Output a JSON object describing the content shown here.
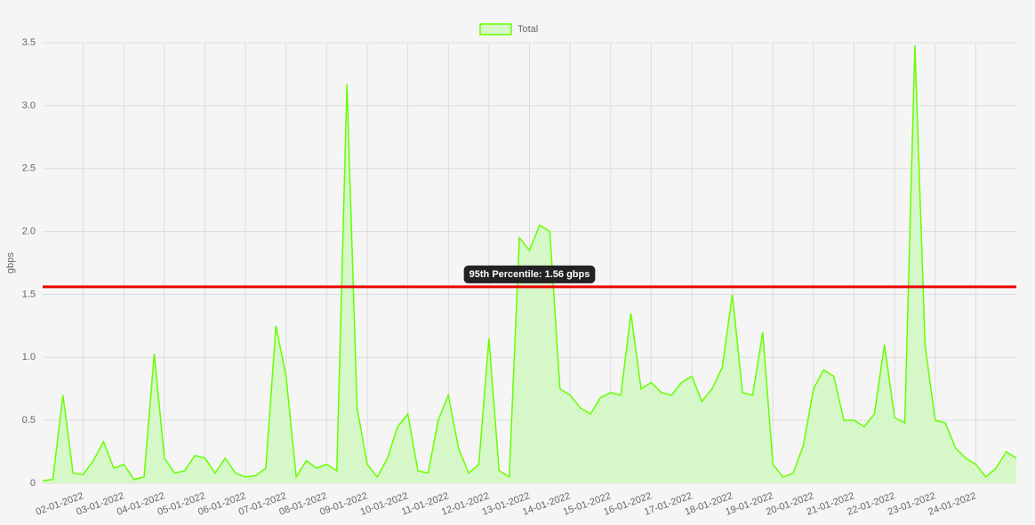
{
  "chart_data": {
    "type": "area",
    "y_label": "gbps",
    "ylim": [
      0,
      3.5
    ],
    "yticks": [
      0,
      0.5,
      {
        "value": 1,
        "label": "1.0"
      },
      1.5,
      {
        "value": 2,
        "label": "2.0"
      },
      2.5,
      {
        "value": 3,
        "label": "3.0"
      },
      3.5
    ],
    "grid": true,
    "legend": "top",
    "categories": [
      null,
      null,
      null,
      null,
      "02-01-2022",
      null,
      null,
      null,
      "03-01-2022",
      null,
      null,
      null,
      "04-01-2022",
      null,
      null,
      null,
      "05-01-2022",
      null,
      null,
      null,
      "06-01-2022",
      null,
      null,
      null,
      "07-01-2022",
      null,
      null,
      null,
      "08-01-2022",
      null,
      null,
      null,
      "09-01-2022",
      null,
      null,
      null,
      "10-01-2022",
      null,
      null,
      null,
      "11-01-2022",
      null,
      null,
      null,
      "12-01-2022",
      null,
      null,
      null,
      "13-01-2022",
      null,
      null,
      null,
      "14-01-2022",
      null,
      null,
      null,
      "15-01-2022",
      null,
      null,
      null,
      "16-01-2022",
      null,
      null,
      null,
      "17-01-2022",
      null,
      null,
      null,
      "18-01-2022",
      null,
      null,
      null,
      "19-01-2022",
      null,
      null,
      null,
      "20-01-2022",
      null,
      null,
      null,
      "21-01-2022",
      null,
      null,
      null,
      "22-01-2022",
      null,
      null,
      null,
      "23-01-2022",
      null,
      null,
      null,
      "24-01-2022",
      null,
      null,
      null,
      null
    ],
    "series": [
      {
        "name": "Total",
        "color": "#66ff00",
        "fill": "#d6f7c8",
        "values": [
          0.02,
          0.03,
          0.7,
          0.08,
          0.07,
          0.18,
          0.33,
          0.12,
          0.15,
          0.03,
          0.05,
          1.03,
          0.2,
          0.08,
          0.1,
          0.22,
          0.2,
          0.08,
          0.2,
          0.08,
          0.05,
          0.06,
          0.12,
          1.25,
          0.85,
          0.05,
          0.18,
          0.12,
          0.15,
          0.1,
          3.17,
          0.6,
          0.15,
          0.05,
          0.2,
          0.45,
          0.55,
          0.1,
          0.08,
          0.5,
          0.7,
          0.28,
          0.08,
          0.15,
          1.15,
          0.1,
          0.05,
          1.95,
          1.85,
          2.05,
          2.0,
          0.75,
          0.7,
          0.6,
          0.55,
          0.68,
          0.72,
          0.7,
          1.35,
          0.75,
          0.8,
          0.72,
          0.7,
          0.8,
          0.85,
          0.65,
          0.75,
          0.92,
          1.5,
          0.72,
          0.7,
          1.2,
          0.15,
          0.05,
          0.08,
          0.3,
          0.75,
          0.9,
          0.85,
          0.5,
          0.5,
          0.45,
          0.55,
          1.1,
          0.52,
          0.48,
          3.48,
          1.1,
          0.5,
          0.48,
          0.28,
          0.2,
          0.15,
          0.05,
          0.12,
          0.25,
          0.2
        ]
      }
    ],
    "annotation": {
      "label": "95th Percentile: 1.56 gbps",
      "value": 1.56,
      "color": "#ee0000"
    }
  }
}
